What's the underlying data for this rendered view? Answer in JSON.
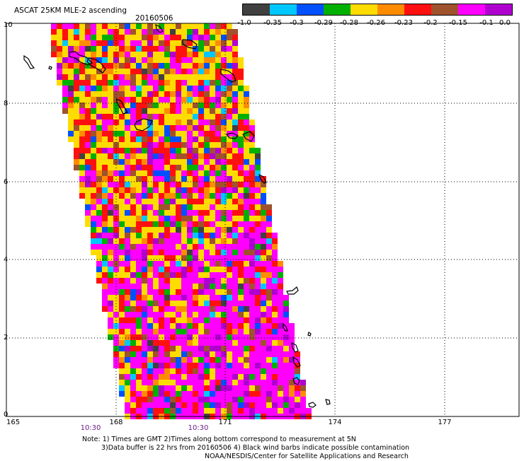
{
  "title": "ASCAT 25KM MLE-2 ascending",
  "date": "20160506",
  "scale": {
    "labels": [
      "-1.0",
      "-0.35",
      "-0.3",
      "-0.29",
      "-0.28",
      "-0.26",
      "-0.23",
      "-0.2",
      "-0.15",
      "-0.1",
      "0.0"
    ],
    "colors": [
      "#404040",
      "#00c8ff",
      "#0050ff",
      "#00b000",
      "#ffdc00",
      "#ff8c00",
      "#ff1010",
      "#a0522d",
      "#ff00ff",
      "#b000d0"
    ]
  },
  "y_axis": {
    "labels": [
      "10",
      "8",
      "6",
      "4",
      "2",
      "0"
    ]
  },
  "x_axis": {
    "labels": [
      "165",
      "168",
      "171",
      "174",
      "177"
    ]
  },
  "time_labels": [
    "10:30",
    "10:30"
  ],
  "notes": [
    "Note: 1) Times are GMT 2)Times along bottom correspond to measurement at 5N",
    "3)Data buffer is 22 hrs from 20160506 4) Black wind barbs indicate possible contamination",
    "NOAA/NESDIS/Center for Satellite Applications and Research"
  ],
  "colors": {
    "grid": "#000000",
    "coastline": "#000000",
    "time_label": "#6a1b8a",
    "missing_data": "#ffffff"
  }
}
